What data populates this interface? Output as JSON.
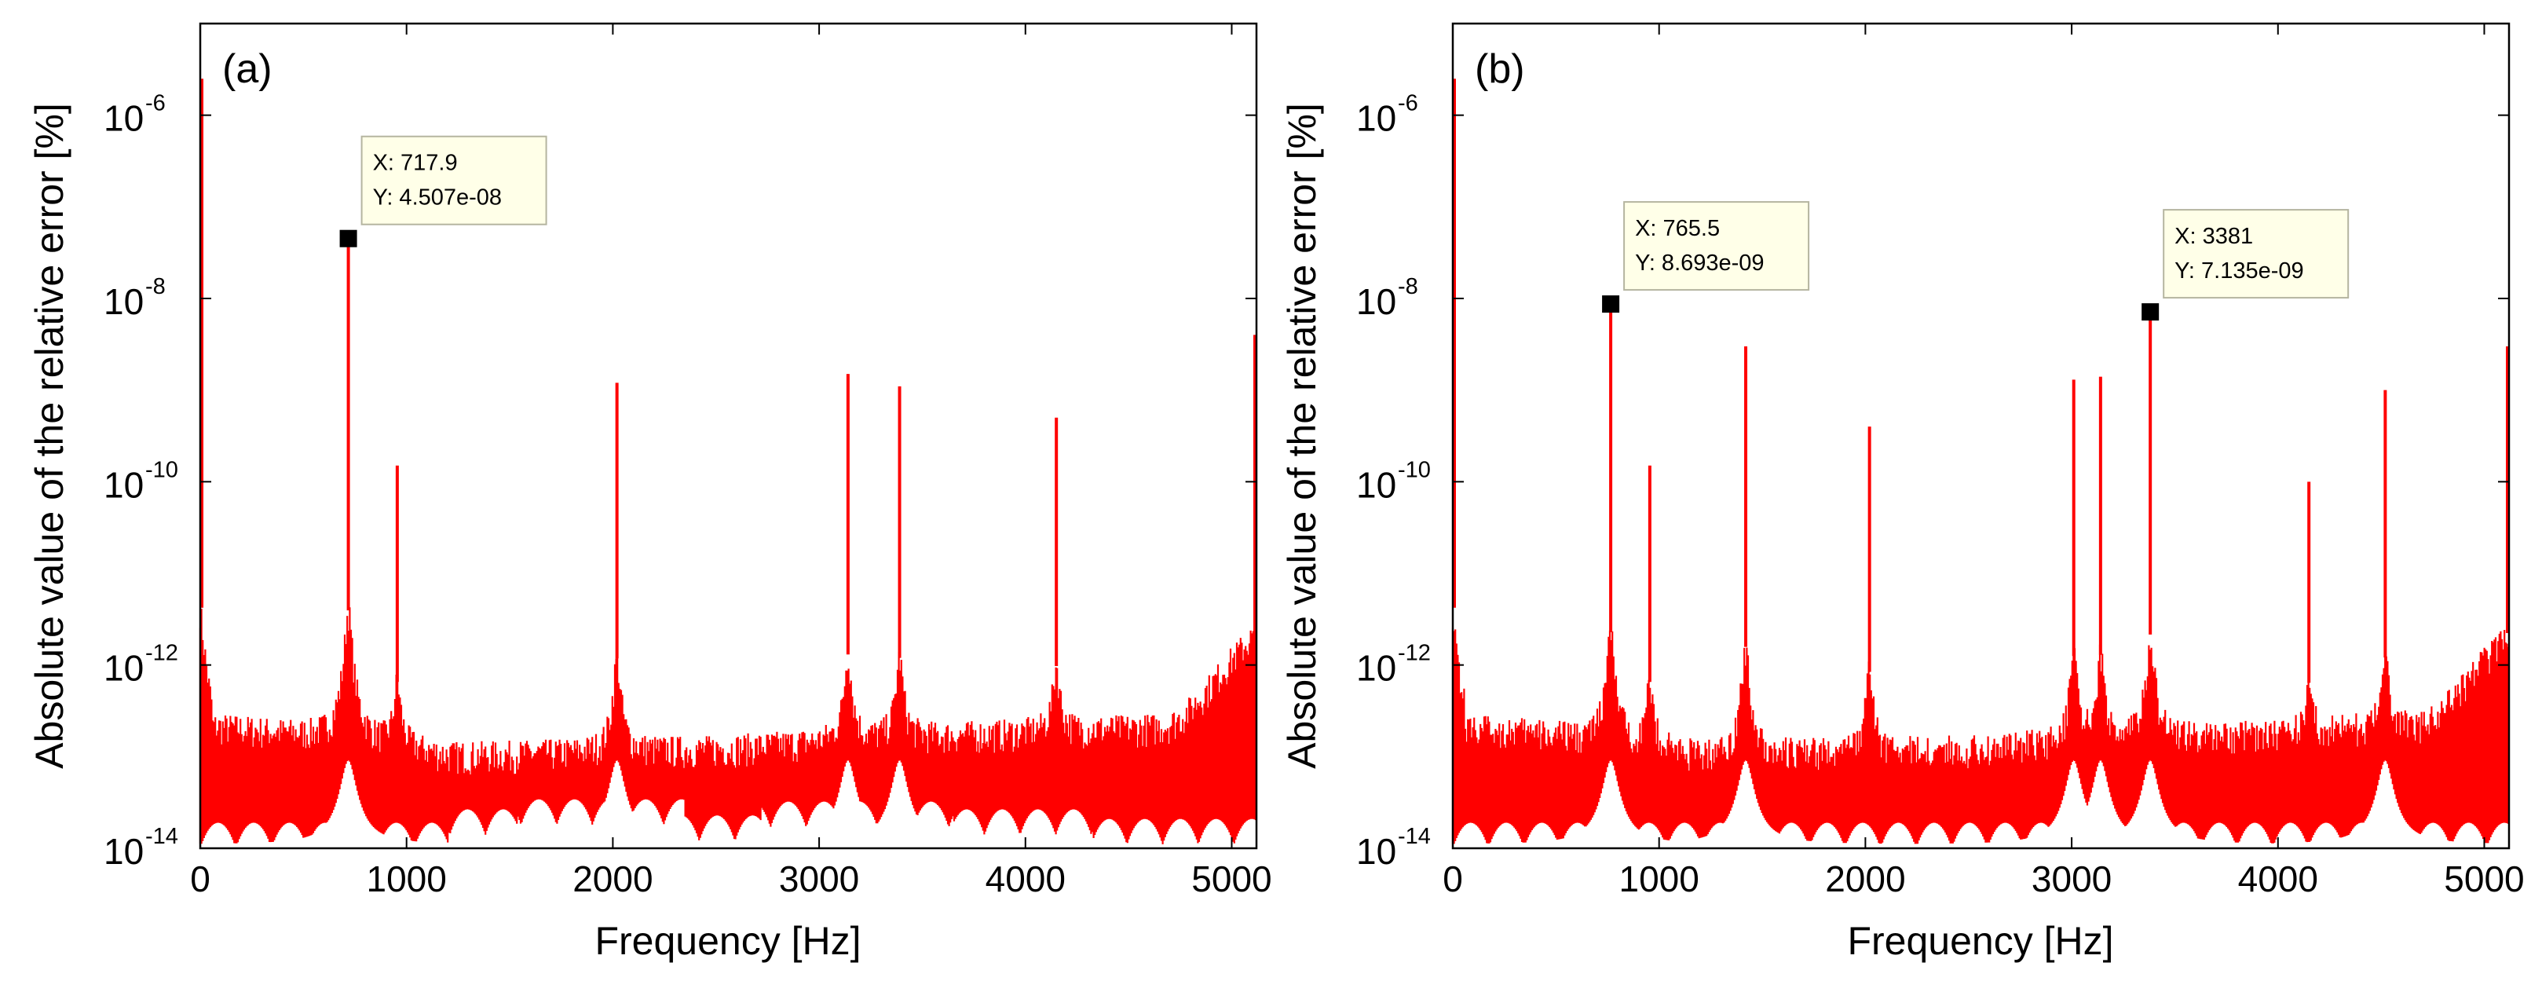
{
  "chart_data": [
    {
      "id": "a",
      "type": "line",
      "panel_label": "(a)",
      "xlabel": "Frequency [Hz]",
      "ylabel": "Absolute value of the relative error [%]",
      "xlim": [
        0,
        5120
      ],
      "ylim": [
        1e-14,
        1e-05
      ],
      "yscale": "log",
      "grid": false,
      "series_color": "#ff0000",
      "xticks": [
        {
          "value": 0,
          "label": "0"
        },
        {
          "value": 1000,
          "label": "1000"
        },
        {
          "value": 2000,
          "label": "2000"
        },
        {
          "value": 3000,
          "label": "3000"
        },
        {
          "value": 4000,
          "label": "4000"
        },
        {
          "value": 5000,
          "label": "5000"
        }
      ],
      "yticks": [
        {
          "value": 1e-14,
          "base": "10",
          "exp": "-14"
        },
        {
          "value": 1e-12,
          "base": "10",
          "exp": "-12"
        },
        {
          "value": 1e-10,
          "base": "10",
          "exp": "-10"
        },
        {
          "value": 1e-08,
          "base": "10",
          "exp": "-8"
        },
        {
          "value": 1e-06,
          "base": "10",
          "exp": "-6"
        }
      ],
      "floor_bands": [
        {
          "x0": 0,
          "x1": 1200,
          "lower": 1e-14
        },
        {
          "x0": 1200,
          "x1": 1540,
          "lower": 1.4e-14
        },
        {
          "x0": 1540,
          "x1": 2350,
          "lower": 1.8e-14
        },
        {
          "x0": 2350,
          "x1": 2720,
          "lower": 1.2e-14
        },
        {
          "x0": 2720,
          "x1": 3650,
          "lower": 1.7e-14
        },
        {
          "x0": 3650,
          "x1": 4330,
          "lower": 1.4e-14
        },
        {
          "x0": 4330,
          "x1": 5120,
          "lower": 1.1e-14
        }
      ],
      "peaks": [
        {
          "x": 0,
          "y": 2.5e-06
        },
        {
          "x": 717.9,
          "y": 4.507e-08
        },
        {
          "x": 955,
          "y": 1.5e-10
        },
        {
          "x": 2020,
          "y": 1.2e-09
        },
        {
          "x": 3140,
          "y": 1.5e-09
        },
        {
          "x": 3390,
          "y": 1.1e-09
        },
        {
          "x": 4150,
          "y": 5e-10
        },
        {
          "x": 5120,
          "y": 4e-09
        }
      ],
      "datatips": [
        {
          "x": 717.9,
          "y": 4.507e-08,
          "x_text": "X: 717.9",
          "y_text": "Y: 4.507e-08"
        }
      ]
    },
    {
      "id": "b",
      "type": "line",
      "panel_label": "(b)",
      "xlabel": "Frequency [Hz]",
      "ylabel": "Absolute value of the relative error [%]",
      "xlim": [
        0,
        5120
      ],
      "ylim": [
        1e-14,
        1e-05
      ],
      "yscale": "log",
      "grid": false,
      "series_color": "#ff0000",
      "xticks": [
        {
          "value": 0,
          "label": "0"
        },
        {
          "value": 1000,
          "label": "1000"
        },
        {
          "value": 2000,
          "label": "2000"
        },
        {
          "value": 3000,
          "label": "3000"
        },
        {
          "value": 4000,
          "label": "4000"
        },
        {
          "value": 5000,
          "label": "5000"
        }
      ],
      "yticks": [
        {
          "value": 1e-14,
          "base": "10",
          "exp": "-14"
        },
        {
          "value": 1e-12,
          "base": "10",
          "exp": "-12"
        },
        {
          "value": 1e-10,
          "base": "10",
          "exp": "-10"
        },
        {
          "value": 1e-08,
          "base": "10",
          "exp": "-8"
        },
        {
          "value": 1e-06,
          "base": "10",
          "exp": "-6"
        }
      ],
      "floor_bands": [
        {
          "x0": 0,
          "x1": 5120,
          "lower": 1e-14
        }
      ],
      "peaks": [
        {
          "x": 0,
          "y": 2.5e-06
        },
        {
          "x": 765.5,
          "y": 8.693e-09
        },
        {
          "x": 955,
          "y": 1.5e-10
        },
        {
          "x": 1420,
          "y": 3e-09
        },
        {
          "x": 2020,
          "y": 4e-10
        },
        {
          "x": 3010,
          "y": 1.3e-09
        },
        {
          "x": 3140,
          "y": 1.4e-09
        },
        {
          "x": 3381,
          "y": 7.135e-09
        },
        {
          "x": 4150,
          "y": 1e-10
        },
        {
          "x": 4520,
          "y": 1e-09
        },
        {
          "x": 5120,
          "y": 3e-09
        }
      ],
      "datatips": [
        {
          "x": 765.5,
          "y": 8.693e-09,
          "x_text": "X: 765.5",
          "y_text": "Y: 8.693e-09"
        },
        {
          "x": 3381,
          "y": 7.135e-09,
          "x_text": "X: 3381",
          "y_text": "Y: 7.135e-09"
        }
      ]
    }
  ]
}
